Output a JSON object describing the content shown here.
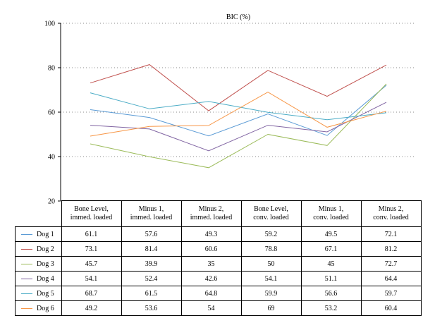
{
  "chart_data": {
    "type": "line",
    "title": "BIC (%)",
    "ylim": [
      20,
      100
    ],
    "yticks": [
      20,
      40,
      60,
      80,
      100
    ],
    "grid": true,
    "categories": [
      "Bone Level, immed. loaded",
      "Minus 1, immed. loaded",
      "Minus 2, immed. loaded",
      "Bone Level, conv. loaded",
      "Minus 1, conv. loaded",
      "Minus 2, conv. loaded"
    ],
    "category_lines": [
      [
        "Bone Level,",
        "immed. loaded"
      ],
      [
        "Minus 1,",
        "immed. loaded"
      ],
      [
        "Minus 2,",
        "immed. loaded"
      ],
      [
        "Bone Level,",
        "conv. loaded"
      ],
      [
        "Minus 1,",
        "conv. loaded"
      ],
      [
        "Minus 2,",
        "conv. loaded"
      ]
    ],
    "series": [
      {
        "name": "Dog 1",
        "color": "#5b9bd5",
        "values": [
          61.1,
          57.6,
          49.3,
          59.2,
          49.5,
          72.1
        ]
      },
      {
        "name": "Dog 2",
        "color": "#c0504d",
        "values": [
          73.1,
          81.4,
          60.6,
          78.8,
          67.1,
          81.2
        ]
      },
      {
        "name": "Dog 3",
        "color": "#9bbb59",
        "values": [
          45.7,
          39.9,
          35,
          50,
          45,
          72.7
        ]
      },
      {
        "name": "Dog 4",
        "color": "#8064a2",
        "values": [
          54.1,
          52.4,
          42.6,
          54.1,
          51.1,
          64.4
        ]
      },
      {
        "name": "Dog 5",
        "color": "#4bacc6",
        "values": [
          68.7,
          61.5,
          64.8,
          59.9,
          56.6,
          59.7
        ]
      },
      {
        "name": "Dog 6",
        "color": "#f79646",
        "values": [
          49.2,
          53.6,
          54,
          69,
          53.2,
          60.4
        ]
      }
    ]
  }
}
